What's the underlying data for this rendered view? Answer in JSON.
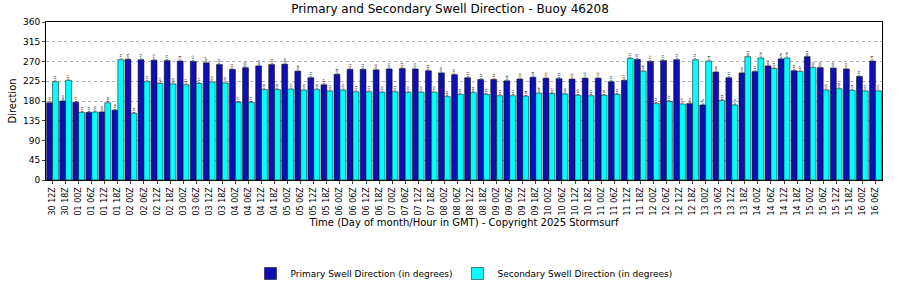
{
  "chart_data": {
    "type": "bar",
    "title": "Primary and Secondary Swell Direction - Buoy 46208",
    "x_label": "Time (Day of month/Hour in GMT) - Copyright 2025 Stormsurf",
    "y_label": "Direction",
    "categories": [
      "30 12Z",
      "30 18Z",
      "01 00Z",
      "01 06Z",
      "01 12Z",
      "01 18Z",
      "02 00Z",
      "02 06Z",
      "02 12Z",
      "02 18Z",
      "03 00Z",
      "03 06Z",
      "03 12Z",
      "03 18Z",
      "04 00Z",
      "04 06Z",
      "04 12Z",
      "04 18Z",
      "05 00Z",
      "05 06Z",
      "05 12Z",
      "05 18Z",
      "06 00Z",
      "06 06Z",
      "06 12Z",
      "06 18Z",
      "07 00Z",
      "07 06Z",
      "07 12Z",
      "07 18Z",
      "08 00Z",
      "08 06Z",
      "08 12Z",
      "08 18Z",
      "09 00Z",
      "09 06Z",
      "09 12Z",
      "09 18Z",
      "10 00Z",
      "10 06Z",
      "10 12Z",
      "10 18Z",
      "11 00Z",
      "11 06Z",
      "11 12Z",
      "11 18Z",
      "12 00Z",
      "12 06Z",
      "12 12Z",
      "12 18Z",
      "13 00Z",
      "13 06Z",
      "13 12Z",
      "13 18Z",
      "14 00Z",
      "14 06Z",
      "14 12Z",
      "14 18Z",
      "15 00Z",
      "15 06Z",
      "15 12Z",
      "15 18Z",
      "16 00Z",
      "16 06Z"
    ],
    "series": [
      {
        "name": "Primary Swell Direction (in degrees)",
        "color": "#1010b0",
        "values": [
          176,
          180,
          177,
          154,
          155,
          159,
          275,
          274,
          273,
          272,
          271,
          270,
          267,
          263,
          252,
          256,
          260,
          263,
          264,
          248,
          233,
          217,
          241,
          252,
          252,
          251,
          253,
          254,
          253,
          249,
          244,
          240,
          233,
          229,
          229,
          226,
          230,
          234,
          232,
          231,
          230,
          232,
          232,
          224,
          227,
          275,
          270,
          272,
          274,
          174,
          171,
          246,
          233,
          244,
          247,
          260,
          276,
          249,
          281,
          256,
          255,
          253,
          236,
          271
        ]
      },
      {
        "name": "Secondary Swell Direction (in degrees)",
        "color": "#00ffff",
        "values": [
          224,
          227,
          154,
          155,
          176,
          274,
          152,
          224,
          220,
          219,
          217,
          220,
          223,
          221,
          177,
          177,
          206,
          206,
          207,
          205,
          206,
          203,
          205,
          201,
          201,
          200,
          201,
          200,
          200,
          200,
          190,
          195,
          199,
          195,
          192,
          192,
          191,
          198,
          197,
          196,
          193,
          192,
          193,
          195,
          277,
          248,
          174,
          179,
          173,
          274,
          271,
          181,
          171,
          281,
          278,
          254,
          278,
          247,
          256,
          205,
          208,
          204,
          203,
          203
        ]
      }
    ],
    "ylim": [
      0,
      360
    ],
    "yticks": [
      0,
      45,
      90,
      135,
      180,
      225,
      270,
      315,
      360
    ],
    "grid": true,
    "legend": "bottom",
    "data_labels": true
  }
}
